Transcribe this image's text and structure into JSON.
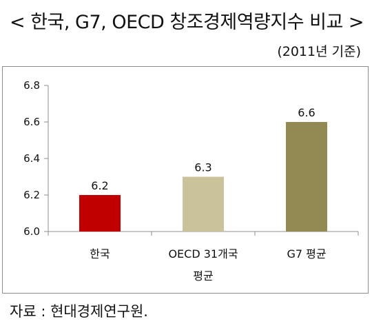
{
  "title": "< 한국, G7, OECD 창조경제역량지수 비교 >",
  "subtitle": "(2011년 기준)",
  "source": "자료 : 현대경제연구원.",
  "chart_data": {
    "type": "bar",
    "categories": [
      "한국",
      "OECD 31개국 평균",
      "G7 평균"
    ],
    "category_lines": [
      [
        "한국"
      ],
      [
        "OECD 31개국",
        "평균"
      ],
      [
        "G7 평균"
      ]
    ],
    "values": [
      6.2,
      6.3,
      6.6
    ],
    "value_labels": [
      "6.2",
      "6.3",
      "6.6"
    ],
    "bar_colors": [
      "#c00000",
      "#c9c29b",
      "#938953"
    ],
    "ylim": [
      6.0,
      6.8
    ],
    "yticks": [
      "6.0",
      "6.2",
      "6.4",
      "6.6",
      "6.8"
    ],
    "grid": false,
    "legend": "none"
  }
}
